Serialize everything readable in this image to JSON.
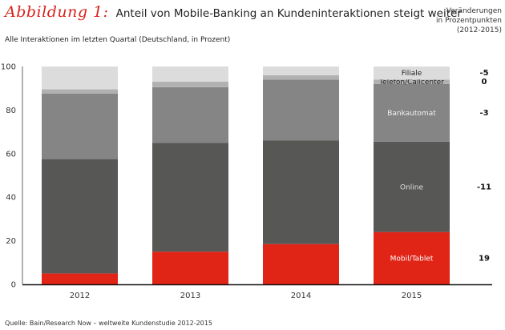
{
  "header": {
    "figure_label": "Abbildung 1:",
    "title": "Anteil von Mobile-Banking an Kundeninteraktionen steigt weiter",
    "subtitle": "Alle Interaktionen im letzten Quartal (Deutschland, in Prozent)",
    "change_heading": [
      "Veränderungen",
      "in Prozentpunkten",
      "(2012-2015)"
    ]
  },
  "footer": {
    "source": "Quelle: Bain/Research Now – weltweite Kundenstudie 2012-2015"
  },
  "chart_data": {
    "type": "bar",
    "stacked": true,
    "title": "Anteil von Mobile-Banking an Kundeninteraktionen steigt weiter",
    "xlabel": "",
    "ylabel": "",
    "ylim": [
      0,
      100
    ],
    "yticks": [
      0,
      20,
      40,
      60,
      80,
      100
    ],
    "grid": false,
    "categories": [
      "2012",
      "2013",
      "2014",
      "2015"
    ],
    "series": [
      {
        "name": "Mobil/Tablet",
        "color": "#e02416",
        "label_color": "#ffffff",
        "change": "19",
        "values": [
          5,
          15,
          18.5,
          24
        ]
      },
      {
        "name": "Online",
        "color": "#575755",
        "label_color": "#e0e0e0",
        "change": "-11",
        "values": [
          52.5,
          50,
          47.5,
          41.5
        ]
      },
      {
        "name": "Bankautomat",
        "color": "#858585",
        "label_color": "#f2f2f2",
        "change": "-3",
        "values": [
          30,
          25.5,
          28,
          26.5
        ]
      },
      {
        "name": "Telefon/Callcenter",
        "color": "#b1b1b1",
        "label_color": "#222222",
        "change": "0",
        "values": [
          2,
          2.5,
          2,
          2
        ]
      },
      {
        "name": "Filiale",
        "color": "#dcdcdc",
        "label_color": "#222222",
        "change": "-5",
        "values": [
          10.5,
          7,
          4,
          6
        ]
      }
    ],
    "labeled_category": "2015",
    "colors": {
      "axis": "#999999",
      "baseline": "#111111"
    }
  }
}
